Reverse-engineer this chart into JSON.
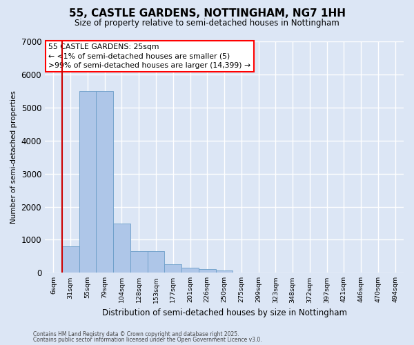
{
  "title": "55, CASTLE GARDENS, NOTTINGHAM, NG7 1HH",
  "subtitle": "Size of property relative to semi-detached houses in Nottingham",
  "xlabel": "Distribution of semi-detached houses by size in Nottingham",
  "ylabel": "Number of semi-detached properties",
  "categories": [
    "6sqm",
    "31sqm",
    "55sqm",
    "79sqm",
    "104sqm",
    "128sqm",
    "153sqm",
    "177sqm",
    "201sqm",
    "226sqm",
    "250sqm",
    "275sqm",
    "299sqm",
    "323sqm",
    "348sqm",
    "372sqm",
    "397sqm",
    "421sqm",
    "446sqm",
    "470sqm",
    "494sqm"
  ],
  "bar_values": [
    0,
    800,
    5500,
    5500,
    1480,
    650,
    650,
    260,
    150,
    120,
    60,
    0,
    0,
    0,
    0,
    0,
    0,
    0,
    0,
    0,
    0
  ],
  "bar_color": "#aec6e8",
  "bar_edge_color": "#6b9ec8",
  "bg_color": "#dce6f5",
  "fig_color": "#dce6f5",
  "grid_color": "#ffffff",
  "annotation_text": "55 CASTLE GARDENS: 25sqm\n← <1% of semi-detached houses are smaller (5)\n>99% of semi-detached houses are larger (14,399) →",
  "vline_color": "#cc0000",
  "vline_x": 0.5,
  "ylim": [
    0,
    7000
  ],
  "yticks": [
    0,
    1000,
    2000,
    3000,
    4000,
    5000,
    6000,
    7000
  ],
  "footer_line1": "Contains HM Land Registry data © Crown copyright and database right 2025.",
  "footer_line2": "Contains public sector information licensed under the Open Government Licence v3.0."
}
